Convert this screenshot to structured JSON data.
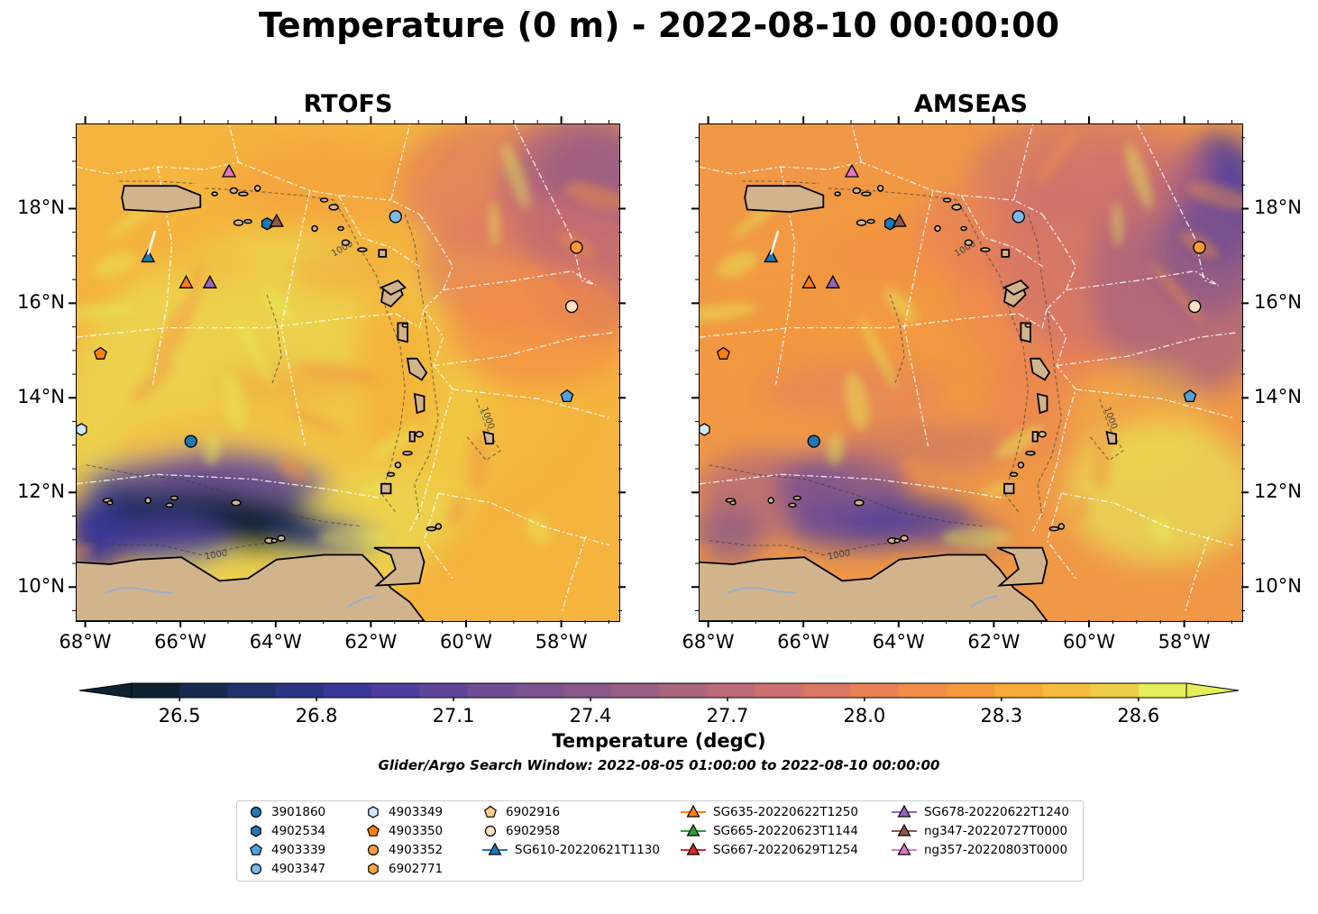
{
  "title": "Temperature (0 m) - 2022-08-10 00:00:00",
  "panels": [
    {
      "name": "RTOFS"
    },
    {
      "name": "AMSEAS"
    }
  ],
  "axes": {
    "x_ticks": [
      "68°W",
      "66°W",
      "64°W",
      "62°W",
      "60°W",
      "58°W"
    ],
    "y_ticks": [
      "18°N",
      "16°N",
      "14°N",
      "12°N",
      "10°N"
    ],
    "x_tick_values": [
      -68,
      -66,
      -64,
      -62,
      -60,
      -58
    ],
    "y_tick_values": [
      18,
      16,
      14,
      12,
      10
    ],
    "lon_range": [
      -68.2,
      -56.8
    ],
    "lat_range": [
      9.3,
      19.8
    ]
  },
  "contour_label": "1000",
  "colorbar": {
    "label": "Temperature (degC)",
    "ticks": [
      "26.5",
      "26.8",
      "27.1",
      "27.4",
      "27.7",
      "28.0",
      "28.3",
      "28.6"
    ],
    "range": [
      26.5,
      28.6
    ],
    "colors": [
      "#0d2231",
      "#172b4f",
      "#1e326e",
      "#2a3583",
      "#3b3798",
      "#4e3d9e",
      "#5f4599",
      "#6f4c94",
      "#7c528f",
      "#8a5889",
      "#9a5e84",
      "#ab647d",
      "#bc6a76",
      "#cd7070",
      "#dd7765",
      "#ea8055",
      "#f38c47",
      "#f59a3c",
      "#f7aa38",
      "#f5bc3c",
      "#eecd46",
      "#e6ee5a"
    ]
  },
  "search_window": "Glider/Argo Search Window: 2022-08-05 01:00:00 to 2022-08-10 00:00:00",
  "legend": {
    "items": [
      {
        "label": "3901860",
        "marker": "circle",
        "color": "#1f77b4"
      },
      {
        "label": "4902534",
        "marker": "hexagon",
        "color": "#1f77b4"
      },
      {
        "label": "4903339",
        "marker": "pentagon",
        "color": "#4ea3dc"
      },
      {
        "label": "4903347",
        "marker": "circle",
        "color": "#7ab9e8"
      },
      {
        "label": "4903349",
        "marker": "hexagon",
        "color": "#cfe6f7"
      },
      {
        "label": "4903350",
        "marker": "pentagon",
        "color": "#ff7f0e"
      },
      {
        "label": "4903352",
        "marker": "circle",
        "color": "#ff9a3c"
      },
      {
        "label": "6902771",
        "marker": "hexagon",
        "color": "#ffa347"
      },
      {
        "label": "6902916",
        "marker": "pentagon",
        "color": "#ffcb8f"
      },
      {
        "label": "6902958",
        "marker": "circle",
        "color": "#ffe2c2"
      },
      {
        "label": "SG610-20220621T1130",
        "marker": "triangle-line",
        "color": "#1f77b4"
      },
      {
        "label": "SG635-20220622T1250",
        "marker": "triangle-line",
        "color": "#ff7f0e"
      },
      {
        "label": "SG665-20220623T1144",
        "marker": "triangle-line",
        "color": "#2ca02c"
      },
      {
        "label": "SG667-20220629T1254",
        "marker": "triangle-line",
        "color": "#d62728"
      },
      {
        "label": "SG678-20220622T1240",
        "marker": "triangle-line",
        "color": "#9467bd"
      },
      {
        "label": "ng347-20220727T0000",
        "marker": "triangle-line",
        "color": "#8c564b"
      },
      {
        "label": "ng357-20220803T0000",
        "marker": "triangle-line",
        "color": "#e377c2"
      }
    ]
  },
  "observations": [
    {
      "id": "3901860",
      "lon": -65.8,
      "lat": 13.1
    },
    {
      "id": "4902534",
      "lon": -64.2,
      "lat": 17.7
    },
    {
      "id": "4903339",
      "lon": -57.9,
      "lat": 14.05
    },
    {
      "id": "4903347",
      "lon": -61.5,
      "lat": 17.85
    },
    {
      "id": "4903349",
      "lon": -68.1,
      "lat": 13.35
    },
    {
      "id": "4903350",
      "lon": -67.7,
      "lat": 14.95
    },
    {
      "id": "4903352",
      "lon": -57.7,
      "lat": 17.2
    },
    {
      "id": "6902958",
      "lon": -57.8,
      "lat": 15.95
    },
    {
      "id": "SG610-20220621T1130",
      "lon": -66.7,
      "lat": 17.0
    },
    {
      "id": "SG635-20220622T1250",
      "lon": -65.9,
      "lat": 16.45
    },
    {
      "id": "SG678-20220622T1240",
      "lon": -65.4,
      "lat": 16.45
    },
    {
      "id": "ng347-20220727T0000",
      "lon": -64.0,
      "lat": 17.75
    },
    {
      "id": "ng357-20220803T0000",
      "lon": -65.0,
      "lat": 18.8
    }
  ]
}
